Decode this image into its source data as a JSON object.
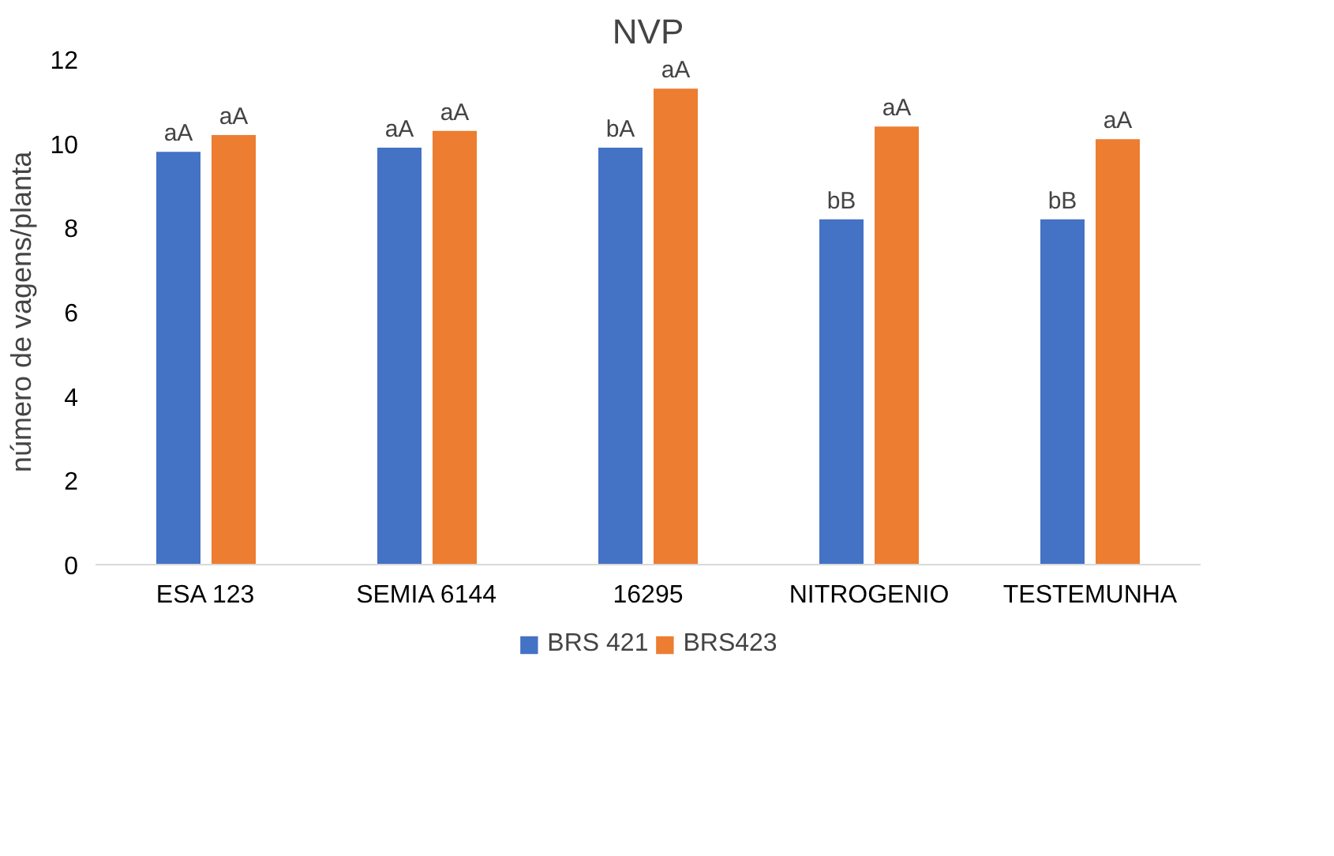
{
  "chart_data": {
    "type": "bar",
    "title": "NVP",
    "ylabel": "número de vagens/planta",
    "categories": [
      "ESA 123",
      "SEMIA 6144",
      "16295",
      "NITROGENIO",
      "TESTEMUNHA"
    ],
    "series": [
      {
        "name": "BRS 421",
        "color": "#4472c4",
        "values": [
          9.8,
          9.9,
          9.9,
          8.2,
          8.2
        ],
        "value_labels": [
          "aA",
          "aA",
          "bA",
          "bB",
          "bB"
        ]
      },
      {
        "name": "BRS423",
        "color": "#ed7d31",
        "values": [
          10.2,
          10.3,
          11.3,
          10.4,
          10.1
        ],
        "value_labels": [
          "aA",
          "aA",
          "aA",
          "aA",
          "aA"
        ]
      }
    ],
    "ylim": [
      0,
      12
    ],
    "yticks": [
      0,
      2,
      4,
      6,
      8,
      10,
      12
    ],
    "grid": false,
    "legend": "bottom"
  }
}
